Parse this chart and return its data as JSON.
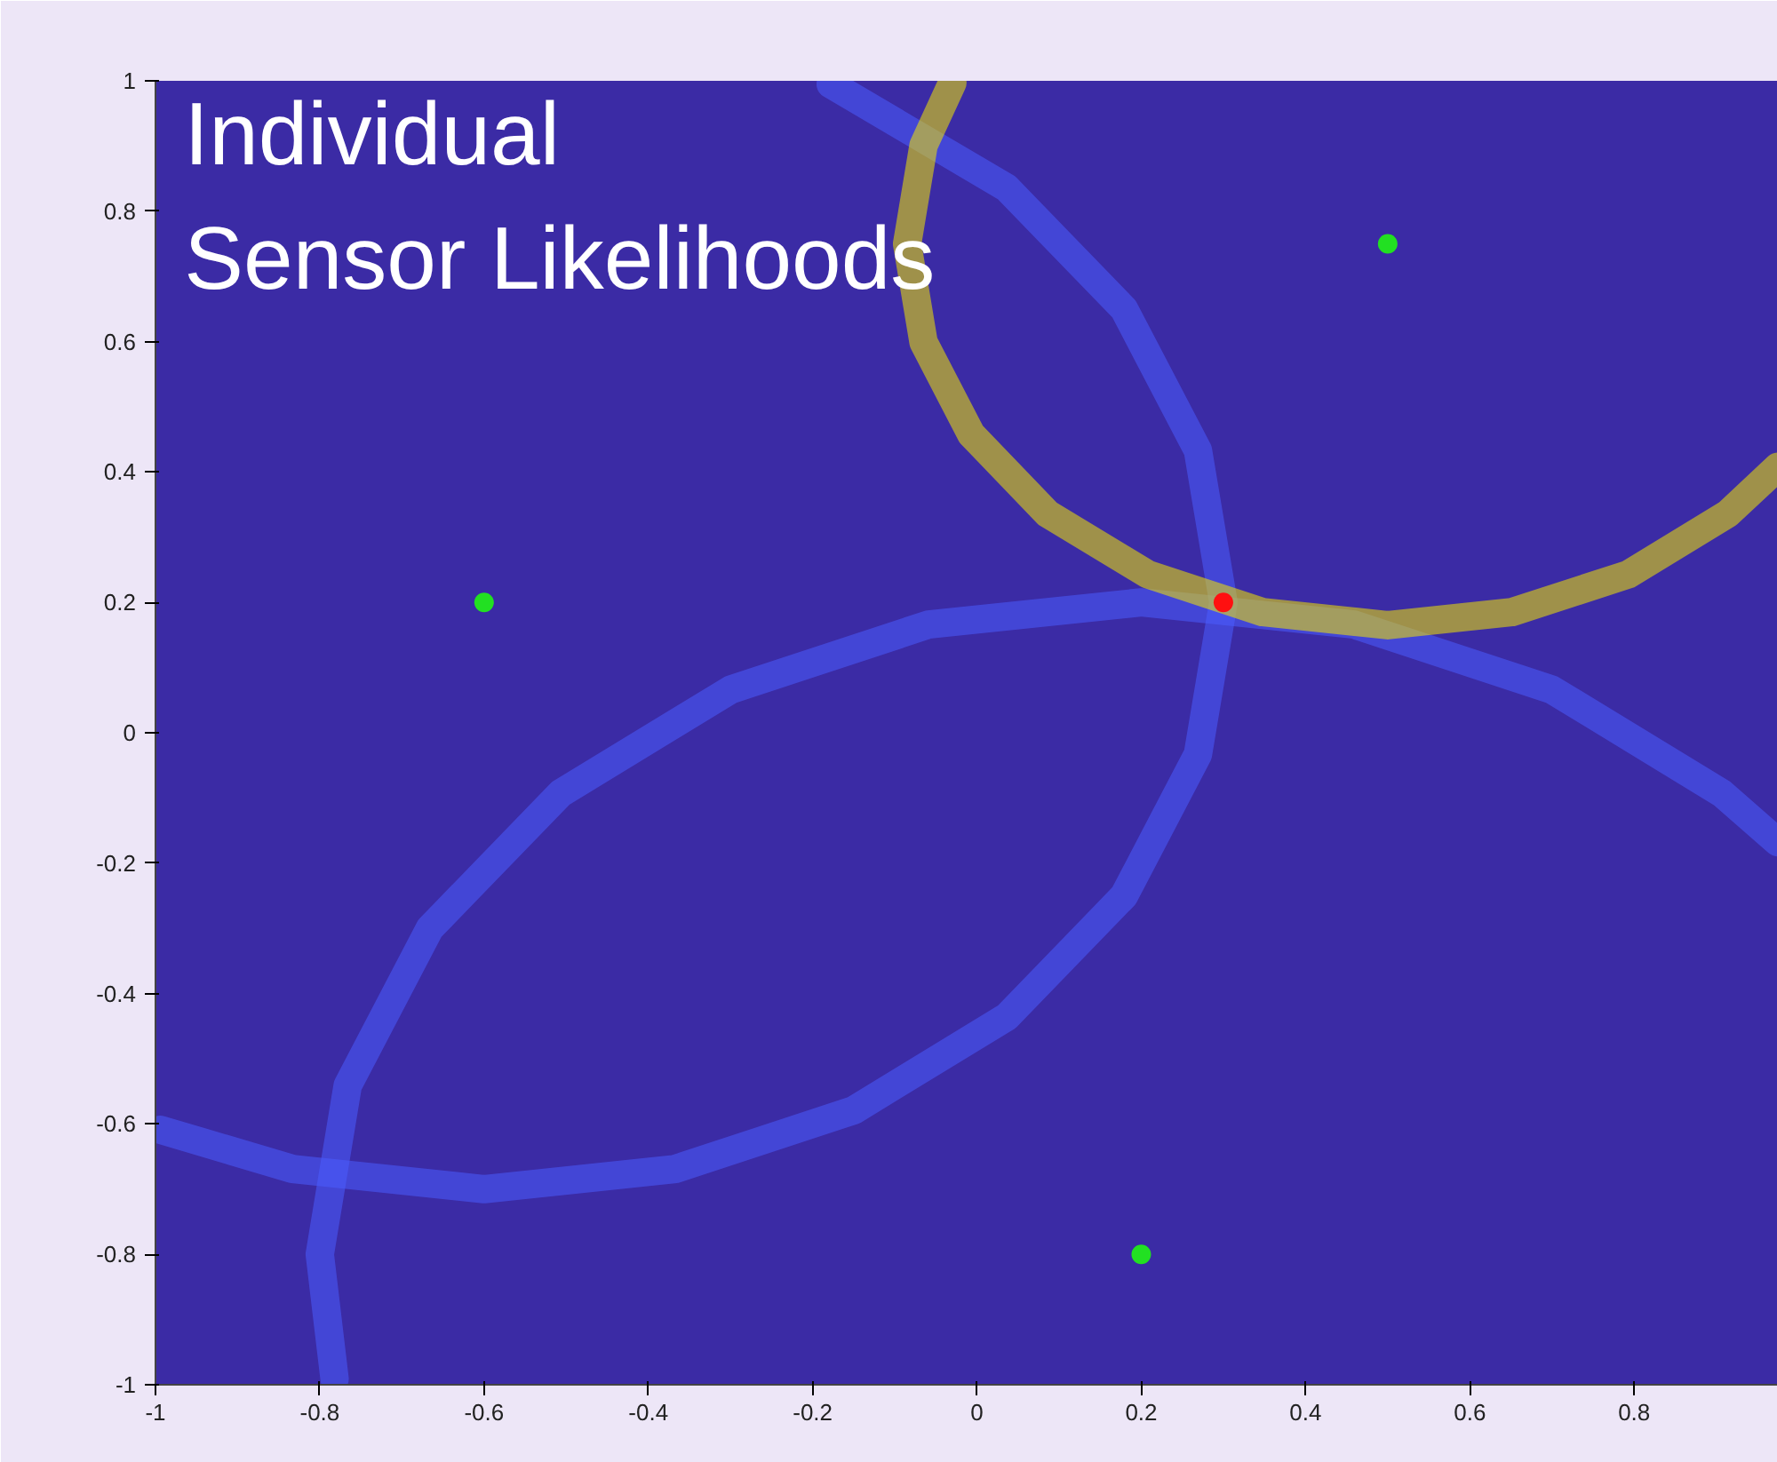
{
  "chart_data": {
    "type": "scatter",
    "title": "Individual Sensor Likelihoods",
    "xlim": [
      -1,
      0.975
    ],
    "ylim": [
      -1,
      1
    ],
    "xticks": [
      -1,
      -0.8,
      -0.6,
      -0.4,
      -0.2,
      0,
      0.2,
      0.4,
      0.6,
      0.8
    ],
    "yticks": [
      -1,
      -0.8,
      -0.6,
      -0.4,
      -0.2,
      0,
      0.2,
      0.4,
      0.6,
      0.8,
      1
    ],
    "grid": false,
    "series": [
      {
        "type": "line",
        "marker": "none",
        "color": "#4a5cff",
        "x": [
          -0.994,
          -0.833,
          -0.6,
          -0.367,
          -0.15,
          0.036,
          0.179,
          0.269,
          0.3,
          0.269,
          0.179,
          0.036,
          -0.178
        ],
        "values": [
          -0.609,
          -0.669,
          -0.7,
          -0.669,
          -0.579,
          -0.436,
          -0.25,
          -0.033,
          0.2,
          0.433,
          0.65,
          0.836,
          0.995
        ]
      },
      {
        "type": "line",
        "marker": "none",
        "color": "#4a5cff",
        "x": [
          0.975,
          0.907,
          0.7,
          0.459,
          0.2,
          -0.059,
          -0.3,
          -0.507,
          -0.666,
          -0.766,
          -0.8,
          -0.782
        ],
        "values": [
          -0.168,
          -0.093,
          0.066,
          0.166,
          0.2,
          0.166,
          0.066,
          -0.093,
          -0.3,
          -0.541,
          -0.8,
          -0.991
        ]
      },
      {
        "type": "line",
        "marker": "none",
        "color": "#f2e600",
        "x": [
          -0.03,
          -0.065,
          -0.085,
          -0.065,
          -0.007,
          0.086,
          0.208,
          0.348,
          0.5,
          0.651,
          0.793,
          0.914,
          0.975
        ],
        "values": [
          0.997,
          0.901,
          0.75,
          0.599,
          0.458,
          0.336,
          0.243,
          0.185,
          0.165,
          0.185,
          0.243,
          0.336,
          0.408
        ]
      },
      {
        "marker": "circle",
        "color": "#22e022",
        "x": [
          0.5,
          -0.6,
          0.2
        ],
        "values": [
          0.75,
          0.2,
          -0.8
        ]
      },
      {
        "marker": "circle",
        "color": "#ff1010",
        "x": [
          0.3
        ],
        "values": [
          0.2
        ]
      }
    ]
  }
}
